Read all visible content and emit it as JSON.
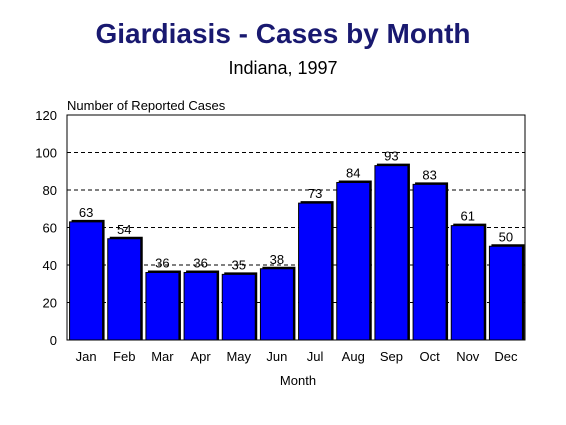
{
  "chart_data": {
    "type": "bar",
    "title": "Giardiasis - Cases by Month",
    "subtitle": "Indiana, 1997",
    "ylabel": "Number of Reported Cases",
    "xlabel": "Month",
    "categories": [
      "Jan",
      "Feb",
      "Mar",
      "Apr",
      "May",
      "Jun",
      "Jul",
      "Aug",
      "Sep",
      "Oct",
      "Nov",
      "Dec"
    ],
    "values": [
      63,
      54,
      36,
      36,
      35,
      38,
      73,
      84,
      93,
      83,
      61,
      50
    ],
    "ylim": [
      0,
      120
    ],
    "yticks": [
      0,
      20,
      40,
      60,
      80,
      100,
      120
    ],
    "grid": true,
    "colors": {
      "bar": "#0000ff",
      "title": "#191970"
    }
  }
}
